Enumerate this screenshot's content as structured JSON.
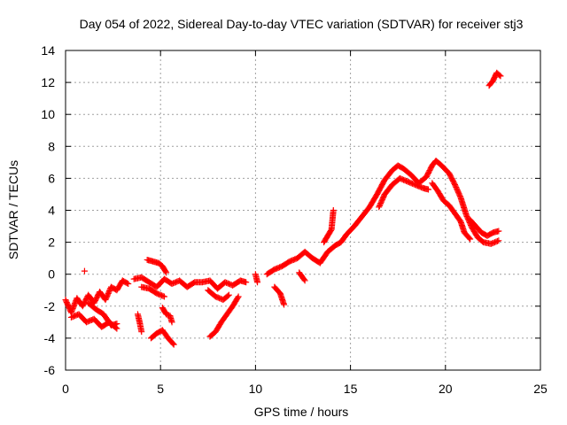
{
  "chart_data": {
    "type": "scatter",
    "title": "Day 054 of 2022, Sidereal Day-to-day VTEC variation (SDTVAR) for receiver stj3",
    "xlabel": "GPS time / hours",
    "ylabel": "SDTVAR / TECUs",
    "xlim": [
      0,
      25
    ],
    "ylim": [
      -6,
      14
    ],
    "xticks": [
      0,
      5,
      10,
      15,
      20,
      25
    ],
    "yticks": [
      -6,
      -4,
      -2,
      0,
      2,
      4,
      6,
      8,
      10,
      12,
      14
    ],
    "grid": true,
    "marker": "+",
    "color": "#ff0000",
    "series": [
      {
        "name": "SDTVAR",
        "segments": [
          [
            [
              0.0,
              -1.6
            ],
            [
              0.3,
              -2.4
            ],
            [
              0.6,
              -1.5
            ],
            [
              0.9,
              -2.0
            ],
            [
              1.2,
              -1.3
            ],
            [
              1.5,
              -1.8
            ],
            [
              1.8,
              -1.1
            ],
            [
              2.1,
              -1.6
            ],
            [
              2.4,
              -0.8
            ],
            [
              2.7,
              -1.0
            ],
            [
              3.0,
              -0.4
            ],
            [
              3.3,
              -0.6
            ]
          ],
          [
            [
              0.3,
              -2.7
            ],
            [
              0.7,
              -2.5
            ],
            [
              1.1,
              -3.0
            ],
            [
              1.5,
              -2.8
            ],
            [
              1.9,
              -3.3
            ],
            [
              2.3,
              -3.0
            ],
            [
              2.7,
              -3.4
            ]
          ],
          [
            [
              1.2,
              -1.8
            ],
            [
              1.6,
              -2.2
            ],
            [
              2.0,
              -2.5
            ],
            [
              2.4,
              -3.2
            ],
            [
              2.7,
              -3.1
            ]
          ],
          [
            [
              1.0,
              0.2
            ]
          ],
          [
            [
              3.6,
              -0.3
            ],
            [
              4.0,
              -0.2
            ],
            [
              4.4,
              -0.5
            ],
            [
              4.8,
              -0.8
            ],
            [
              5.2,
              -0.3
            ],
            [
              5.6,
              -0.6
            ],
            [
              6.0,
              -0.4
            ],
            [
              6.4,
              -0.8
            ],
            [
              6.8,
              -0.5
            ],
            [
              7.2,
              -0.5
            ],
            [
              7.6,
              -0.4
            ],
            [
              8.0,
              -0.9
            ],
            [
              8.4,
              -0.5
            ],
            [
              8.8,
              -0.7
            ],
            [
              9.2,
              -0.4
            ],
            [
              9.5,
              -0.5
            ]
          ],
          [
            [
              4.0,
              -0.8
            ],
            [
              4.4,
              -0.9
            ],
            [
              4.8,
              -1.2
            ],
            [
              5.2,
              -1.4
            ]
          ],
          [
            [
              4.3,
              0.9
            ],
            [
              4.6,
              0.8
            ],
            [
              4.9,
              0.7
            ],
            [
              5.1,
              0.5
            ],
            [
              5.3,
              0.1
            ]
          ],
          [
            [
              3.8,
              -2.5
            ],
            [
              3.9,
              -3.0
            ],
            [
              4.0,
              -3.6
            ]
          ],
          [
            [
              4.5,
              -4.0
            ],
            [
              4.8,
              -3.7
            ],
            [
              5.1,
              -3.5
            ],
            [
              5.4,
              -4.0
            ],
            [
              5.7,
              -4.4
            ]
          ],
          [
            [
              5.1,
              -2.1
            ],
            [
              5.3,
              -2.5
            ],
            [
              5.5,
              -2.6
            ],
            [
              5.6,
              -3.0
            ]
          ],
          [
            [
              7.6,
              -3.9
            ],
            [
              7.9,
              -3.6
            ],
            [
              8.2,
              -3.0
            ],
            [
              8.5,
              -2.5
            ],
            [
              8.8,
              -2.0
            ],
            [
              9.1,
              -1.4
            ]
          ],
          [
            [
              7.5,
              -1.0
            ],
            [
              7.9,
              -1.4
            ],
            [
              8.3,
              -1.6
            ],
            [
              8.6,
              -1.3
            ]
          ],
          [
            [
              10.0,
              0.0
            ],
            [
              10.1,
              -0.5
            ]
          ],
          [
            [
              10.6,
              0.0
            ],
            [
              11.0,
              0.3
            ],
            [
              11.4,
              0.5
            ],
            [
              11.8,
              0.8
            ],
            [
              12.2,
              1.0
            ],
            [
              12.6,
              1.4
            ],
            [
              13.0,
              1.0
            ],
            [
              13.4,
              0.7
            ],
            [
              13.8,
              1.4
            ],
            [
              14.2,
              1.8
            ],
            [
              14.5,
              2.0
            ],
            [
              14.8,
              2.5
            ],
            [
              15.2,
              3.0
            ],
            [
              15.6,
              3.6
            ],
            [
              16.0,
              4.2
            ],
            [
              16.4,
              5.0
            ],
            [
              16.8,
              5.9
            ],
            [
              17.2,
              6.5
            ],
            [
              17.5,
              6.8
            ],
            [
              17.8,
              6.6
            ],
            [
              18.2,
              6.2
            ],
            [
              18.6,
              5.7
            ],
            [
              19.0,
              6.1
            ],
            [
              19.3,
              6.8
            ],
            [
              19.5,
              7.1
            ],
            [
              19.8,
              6.8
            ],
            [
              20.2,
              6.3
            ],
            [
              20.5,
              5.6
            ],
            [
              20.8,
              4.8
            ],
            [
              21.1,
              3.7
            ],
            [
              21.4,
              2.9
            ],
            [
              21.7,
              2.3
            ],
            [
              22.0,
              2.0
            ],
            [
              22.4,
              1.9
            ],
            [
              22.8,
              2.1
            ]
          ],
          [
            [
              11.0,
              -0.8
            ],
            [
              11.3,
              -1.2
            ],
            [
              11.5,
              -1.9
            ]
          ],
          [
            [
              12.3,
              0.1
            ],
            [
              12.6,
              -0.4
            ]
          ],
          [
            [
              13.6,
              2.0
            ],
            [
              14.0,
              2.8
            ],
            [
              14.1,
              4.0
            ]
          ],
          [
            [
              16.5,
              4.2
            ],
            [
              16.8,
              5.0
            ],
            [
              17.2,
              5.6
            ],
            [
              17.6,
              6.0
            ],
            [
              18.0,
              5.8
            ],
            [
              18.4,
              5.6
            ],
            [
              18.8,
              5.4
            ],
            [
              19.1,
              5.3
            ]
          ],
          [
            [
              19.3,
              5.7
            ],
            [
              19.6,
              5.2
            ],
            [
              19.9,
              4.6
            ],
            [
              20.2,
              4.3
            ],
            [
              20.5,
              3.8
            ],
            [
              20.8,
              3.3
            ],
            [
              21.0,
              2.6
            ],
            [
              21.3,
              2.2
            ]
          ],
          [
            [
              21.3,
              3.4
            ],
            [
              21.6,
              3.0
            ],
            [
              21.9,
              2.6
            ],
            [
              22.2,
              2.4
            ],
            [
              22.5,
              2.6
            ],
            [
              22.8,
              2.7
            ]
          ],
          [
            [
              22.3,
              11.8
            ],
            [
              22.5,
              12.1
            ],
            [
              22.7,
              12.6
            ],
            [
              22.9,
              12.4
            ]
          ]
        ]
      }
    ]
  }
}
